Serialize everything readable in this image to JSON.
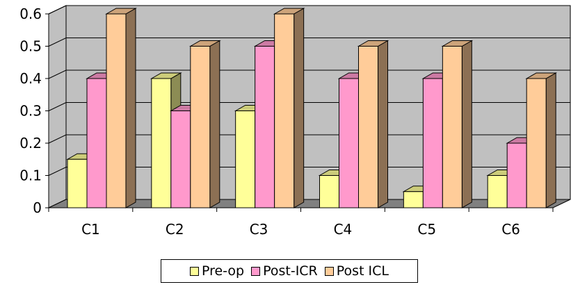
{
  "chart_data": {
    "type": "bar",
    "style": "3d-clustered",
    "categories": [
      "C1",
      "C2",
      "C3",
      "C4",
      "C5",
      "C6"
    ],
    "series": [
      {
        "name": "Pre-op",
        "values": [
          0.15,
          0.4,
          0.3,
          0.1,
          0.05,
          0.1
        ],
        "color": "#FFFF99"
      },
      {
        "name": "Post-ICR",
        "values": [
          0.4,
          0.3,
          0.5,
          0.4,
          0.4,
          0.2
        ],
        "color": "#FF99CC"
      },
      {
        "name": "Post ICL",
        "values": [
          0.6,
          0.5,
          0.6,
          0.5,
          0.5,
          0.4
        ],
        "color": "#FFCC99"
      }
    ],
    "y_ticks": [
      "0",
      "0.1",
      "0.2",
      "0.3",
      "0.4",
      "0.5",
      "0.6"
    ],
    "ylim": [
      0,
      0.6
    ],
    "grid": true,
    "legend_position": "bottom",
    "title": "",
    "xlabel": "",
    "ylabel": ""
  }
}
